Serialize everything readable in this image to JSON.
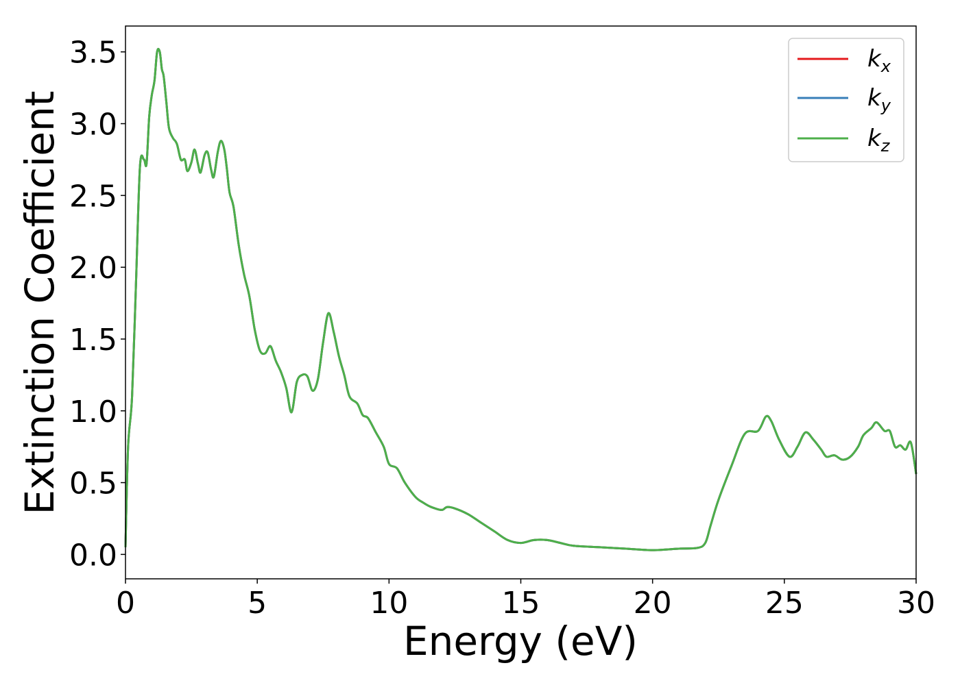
{
  "chart_data": {
    "type": "line",
    "xlabel": "Energy (eV)",
    "ylabel": "Extinction Coefficient",
    "xlim": [
      0,
      30
    ],
    "ylim": [
      -0.17,
      3.68
    ],
    "x_ticks": [
      "0",
      "5",
      "10",
      "15",
      "20",
      "25",
      "30"
    ],
    "y_ticks": [
      "0.0",
      "0.5",
      "1.0",
      "1.5",
      "2.0",
      "2.5",
      "3.0",
      "3.5"
    ],
    "grid": false,
    "legend_position": "top-right",
    "series": [
      {
        "name": "k",
        "sub": "x",
        "color": "#e41a1c"
      },
      {
        "name": "k",
        "sub": "y",
        "color": "#377eb8"
      },
      {
        "name": "k",
        "sub": "z",
        "color": "#4daf4a"
      }
    ],
    "curve": {
      "x": [
        0,
        0.1,
        0.25,
        0.4,
        0.55,
        0.7,
        0.8,
        0.9,
        1.0,
        1.1,
        1.2,
        1.3,
        1.38,
        1.45,
        1.55,
        1.65,
        1.8,
        1.95,
        2.1,
        2.25,
        2.35,
        2.5,
        2.62,
        2.75,
        2.85,
        3.0,
        3.12,
        3.25,
        3.35,
        3.5,
        3.62,
        3.75,
        3.85,
        3.95,
        4.1,
        4.3,
        4.5,
        4.7,
        4.9,
        5.1,
        5.3,
        5.5,
        5.7,
        5.9,
        6.1,
        6.3,
        6.5,
        6.7,
        6.9,
        7.1,
        7.3,
        7.5,
        7.7,
        7.9,
        8.1,
        8.3,
        8.5,
        8.8,
        9.0,
        9.2,
        9.5,
        9.8,
        10.0,
        10.3,
        10.6,
        11.0,
        11.3,
        11.6,
        12.0,
        12.2,
        12.5,
        13.0,
        13.5,
        14.0,
        14.5,
        15.0,
        15.5,
        16.0,
        16.5,
        17.0,
        18.0,
        19.0,
        20.0,
        21.0,
        21.7,
        22.0,
        22.2,
        22.5,
        23.0,
        23.5,
        24.0,
        24.3,
        24.5,
        24.8,
        25.2,
        25.5,
        25.8,
        26.1,
        26.4,
        26.6,
        26.9,
        27.2,
        27.5,
        27.8,
        28.0,
        28.3,
        28.5,
        28.8,
        29.0,
        29.2,
        29.4,
        29.6,
        29.8,
        30.0
      ],
      "y": [
        0.05,
        0.75,
        1.1,
        1.9,
        2.7,
        2.75,
        2.72,
        3.05,
        3.2,
        3.3,
        3.5,
        3.5,
        3.38,
        3.33,
        3.15,
        2.97,
        2.9,
        2.86,
        2.75,
        2.75,
        2.67,
        2.73,
        2.82,
        2.72,
        2.66,
        2.78,
        2.8,
        2.68,
        2.63,
        2.8,
        2.88,
        2.82,
        2.68,
        2.52,
        2.42,
        2.15,
        1.95,
        1.8,
        1.57,
        1.42,
        1.4,
        1.45,
        1.35,
        1.27,
        1.16,
        0.99,
        1.2,
        1.25,
        1.24,
        1.14,
        1.22,
        1.48,
        1.68,
        1.55,
        1.38,
        1.25,
        1.1,
        1.05,
        0.97,
        0.95,
        0.85,
        0.75,
        0.63,
        0.6,
        0.5,
        0.4,
        0.36,
        0.33,
        0.31,
        0.33,
        0.32,
        0.28,
        0.22,
        0.16,
        0.1,
        0.08,
        0.1,
        0.1,
        0.08,
        0.06,
        0.05,
        0.04,
        0.03,
        0.04,
        0.045,
        0.08,
        0.2,
        0.38,
        0.62,
        0.84,
        0.86,
        0.96,
        0.93,
        0.8,
        0.68,
        0.75,
        0.85,
        0.8,
        0.73,
        0.68,
        0.69,
        0.66,
        0.68,
        0.75,
        0.83,
        0.88,
        0.92,
        0.86,
        0.86,
        0.75,
        0.76,
        0.73,
        0.78,
        0.56
      ]
    }
  }
}
